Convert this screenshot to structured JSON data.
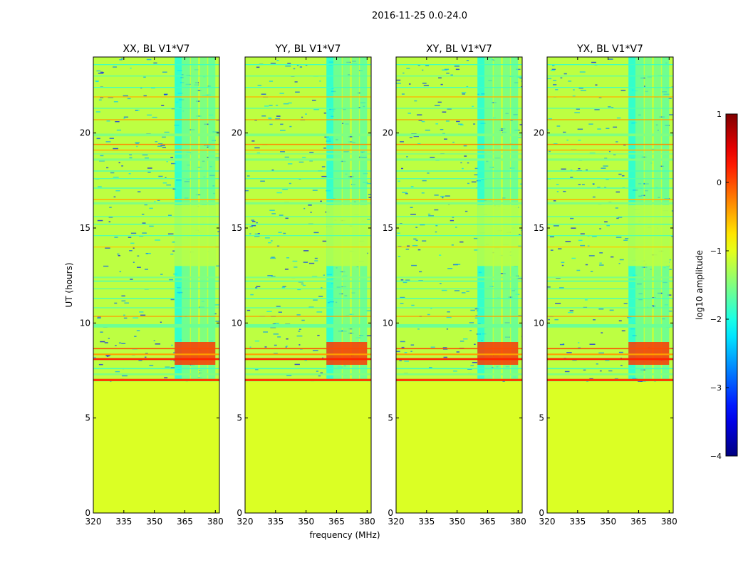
{
  "chart_data": {
    "type": "heatmap",
    "suptitle": "2016-11-25 0.0-24.0",
    "xlabel": "frequency (MHz)",
    "ylabel": "UT (hours)",
    "xlim": [
      320,
      382
    ],
    "ylim": [
      0,
      24
    ],
    "xticks": [
      320,
      335,
      350,
      365,
      380
    ],
    "yticks": [
      0,
      5,
      10,
      15,
      20
    ],
    "panels": [
      {
        "title": "XX, BL V1*V7"
      },
      {
        "title": "YY, BL V1*V7"
      },
      {
        "title": "XY, BL V1*V7"
      },
      {
        "title": "YX, BL V1*V7"
      }
    ],
    "background_value": -1.2,
    "no_data_before_ut": 6.9,
    "no_data_value": -1.05,
    "rfi_bands": [
      {
        "f0": 360.0,
        "f1": 363.5,
        "ut0": 7.0,
        "ut1": 24.0,
        "level": -2.1
      },
      {
        "f0": 363.5,
        "f1": 367.5,
        "ut0": 7.0,
        "ut1": 24.0,
        "level": -1.7
      },
      {
        "f0": 368.0,
        "f1": 371.5,
        "ut0": 7.0,
        "ut1": 24.0,
        "level": -1.6
      },
      {
        "f0": 372.5,
        "f1": 376.0,
        "ut0": 7.0,
        "ut1": 24.0,
        "level": -1.6
      },
      {
        "f0": 376.5,
        "f1": 380.0,
        "ut0": 7.0,
        "ut1": 24.0,
        "level": -1.7
      }
    ],
    "strong_events": [
      {
        "f0": 360.0,
        "f1": 380.0,
        "ut0": 7.8,
        "ut1": 9.0,
        "level": 0.1
      },
      {
        "f0": 360.0,
        "f1": 380.0,
        "ut0": 13.0,
        "ut1": 16.2,
        "level": -1.2
      }
    ],
    "time_stripes": [
      {
        "ut": 7.0,
        "width": 0.12,
        "level": 0.1
      },
      {
        "ut": 7.3,
        "width": 0.1,
        "level": -1.5
      },
      {
        "ut": 7.6,
        "width": 0.06,
        "level": -1.8
      },
      {
        "ut": 8.1,
        "width": 0.1,
        "level": 0.2
      },
      {
        "ut": 8.35,
        "width": 0.08,
        "level": -0.4
      },
      {
        "ut": 8.65,
        "width": 0.06,
        "level": 0.0
      },
      {
        "ut": 9.85,
        "width": 0.18,
        "level": -1.6
      },
      {
        "ut": 10.35,
        "width": 0.05,
        "level": -0.4
      },
      {
        "ut": 10.8,
        "width": 0.05,
        "level": -1.7
      },
      {
        "ut": 11.3,
        "width": 0.05,
        "level": -1.8
      },
      {
        "ut": 11.8,
        "width": 0.05,
        "level": -1.7
      },
      {
        "ut": 12.2,
        "width": 0.08,
        "level": -1.6
      },
      {
        "ut": 12.4,
        "width": 0.08,
        "level": -1.5
      },
      {
        "ut": 14.0,
        "width": 0.05,
        "level": -0.6
      },
      {
        "ut": 14.6,
        "width": 0.05,
        "level": -1.7
      },
      {
        "ut": 15.2,
        "width": 0.05,
        "level": -1.8
      },
      {
        "ut": 15.6,
        "width": 0.05,
        "level": -1.7
      },
      {
        "ut": 16.3,
        "width": 0.12,
        "level": -1.5
      },
      {
        "ut": 16.5,
        "width": 0.06,
        "level": -0.5
      },
      {
        "ut": 17.1,
        "width": 0.05,
        "level": -1.8
      },
      {
        "ut": 17.6,
        "width": 0.05,
        "level": -1.7
      },
      {
        "ut": 18.0,
        "width": 0.05,
        "level": -1.8
      },
      {
        "ut": 18.6,
        "width": 0.12,
        "level": -1.5
      },
      {
        "ut": 18.9,
        "width": 0.06,
        "level": -1.5
      },
      {
        "ut": 19.1,
        "width": 0.06,
        "level": -0.5
      },
      {
        "ut": 19.4,
        "width": 0.06,
        "level": -0.3
      },
      {
        "ut": 19.9,
        "width": 0.14,
        "level": -1.5
      },
      {
        "ut": 20.7,
        "width": 0.05,
        "level": -0.4
      },
      {
        "ut": 21.3,
        "width": 0.05,
        "level": -1.7
      },
      {
        "ut": 21.9,
        "width": 0.05,
        "level": -0.5
      },
      {
        "ut": 22.4,
        "width": 0.05,
        "level": -1.8
      },
      {
        "ut": 23.0,
        "width": 0.05,
        "level": -1.7
      },
      {
        "ut": 23.6,
        "width": 0.05,
        "level": -1.8
      }
    ],
    "colorbar": {
      "label": "log10 amplitude",
      "min": -4,
      "max": 1,
      "ticks": [
        1,
        0,
        -1,
        -2,
        -3,
        -4
      ],
      "tick_labels": [
        "1",
        "0",
        "−1",
        "−2",
        "−3",
        "−4"
      ],
      "colormap": "jet"
    }
  }
}
